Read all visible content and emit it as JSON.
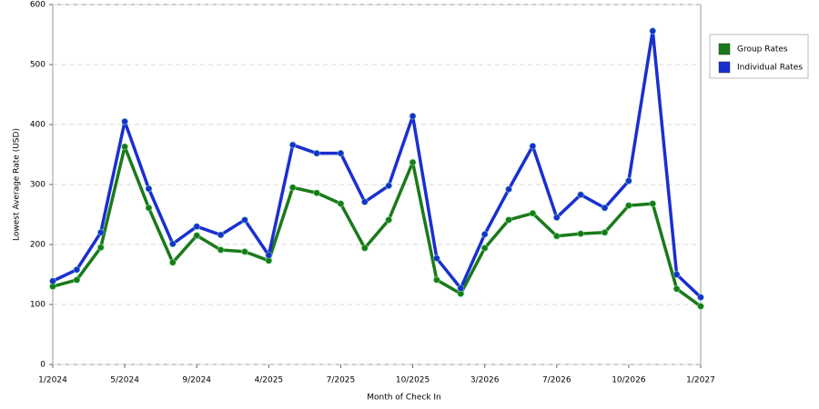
{
  "chart_data": {
    "type": "line",
    "x_label": "Month of Check In",
    "y_label": "Lowest Average Rate (USD)",
    "categories": [
      "1/2024",
      null,
      null,
      "5/2024",
      null,
      null,
      "9/2024",
      null,
      null,
      "4/2025",
      null,
      null,
      "7/2025",
      null,
      null,
      "10/2025",
      null,
      null,
      "3/2026",
      null,
      null,
      "7/2026",
      null,
      null,
      "10/2026",
      null,
      null,
      "1/2027"
    ],
    "series": [
      {
        "name": "Group Rates",
        "color": "#1a7a1a",
        "values": [
          130,
          141,
          195,
          363,
          261,
          170,
          215,
          191,
          188,
          173,
          295,
          286,
          268,
          194,
          241,
          337,
          141,
          118,
          194,
          241,
          252,
          214,
          218,
          220,
          265,
          268,
          126,
          97
        ]
      },
      {
        "name": "Individual Rates",
        "color": "#1a2fd0",
        "values": [
          139,
          158,
          220,
          405,
          293,
          201,
          230,
          216,
          241,
          182,
          366,
          352,
          352,
          271,
          298,
          414,
          177,
          127,
          217,
          292,
          364,
          245,
          283,
          261,
          306,
          556,
          150,
          112
        ]
      }
    ],
    "ylim": [
      0,
      600
    ],
    "yticks": [
      0,
      100,
      200,
      300,
      400,
      500,
      600
    ],
    "grid": true
  }
}
